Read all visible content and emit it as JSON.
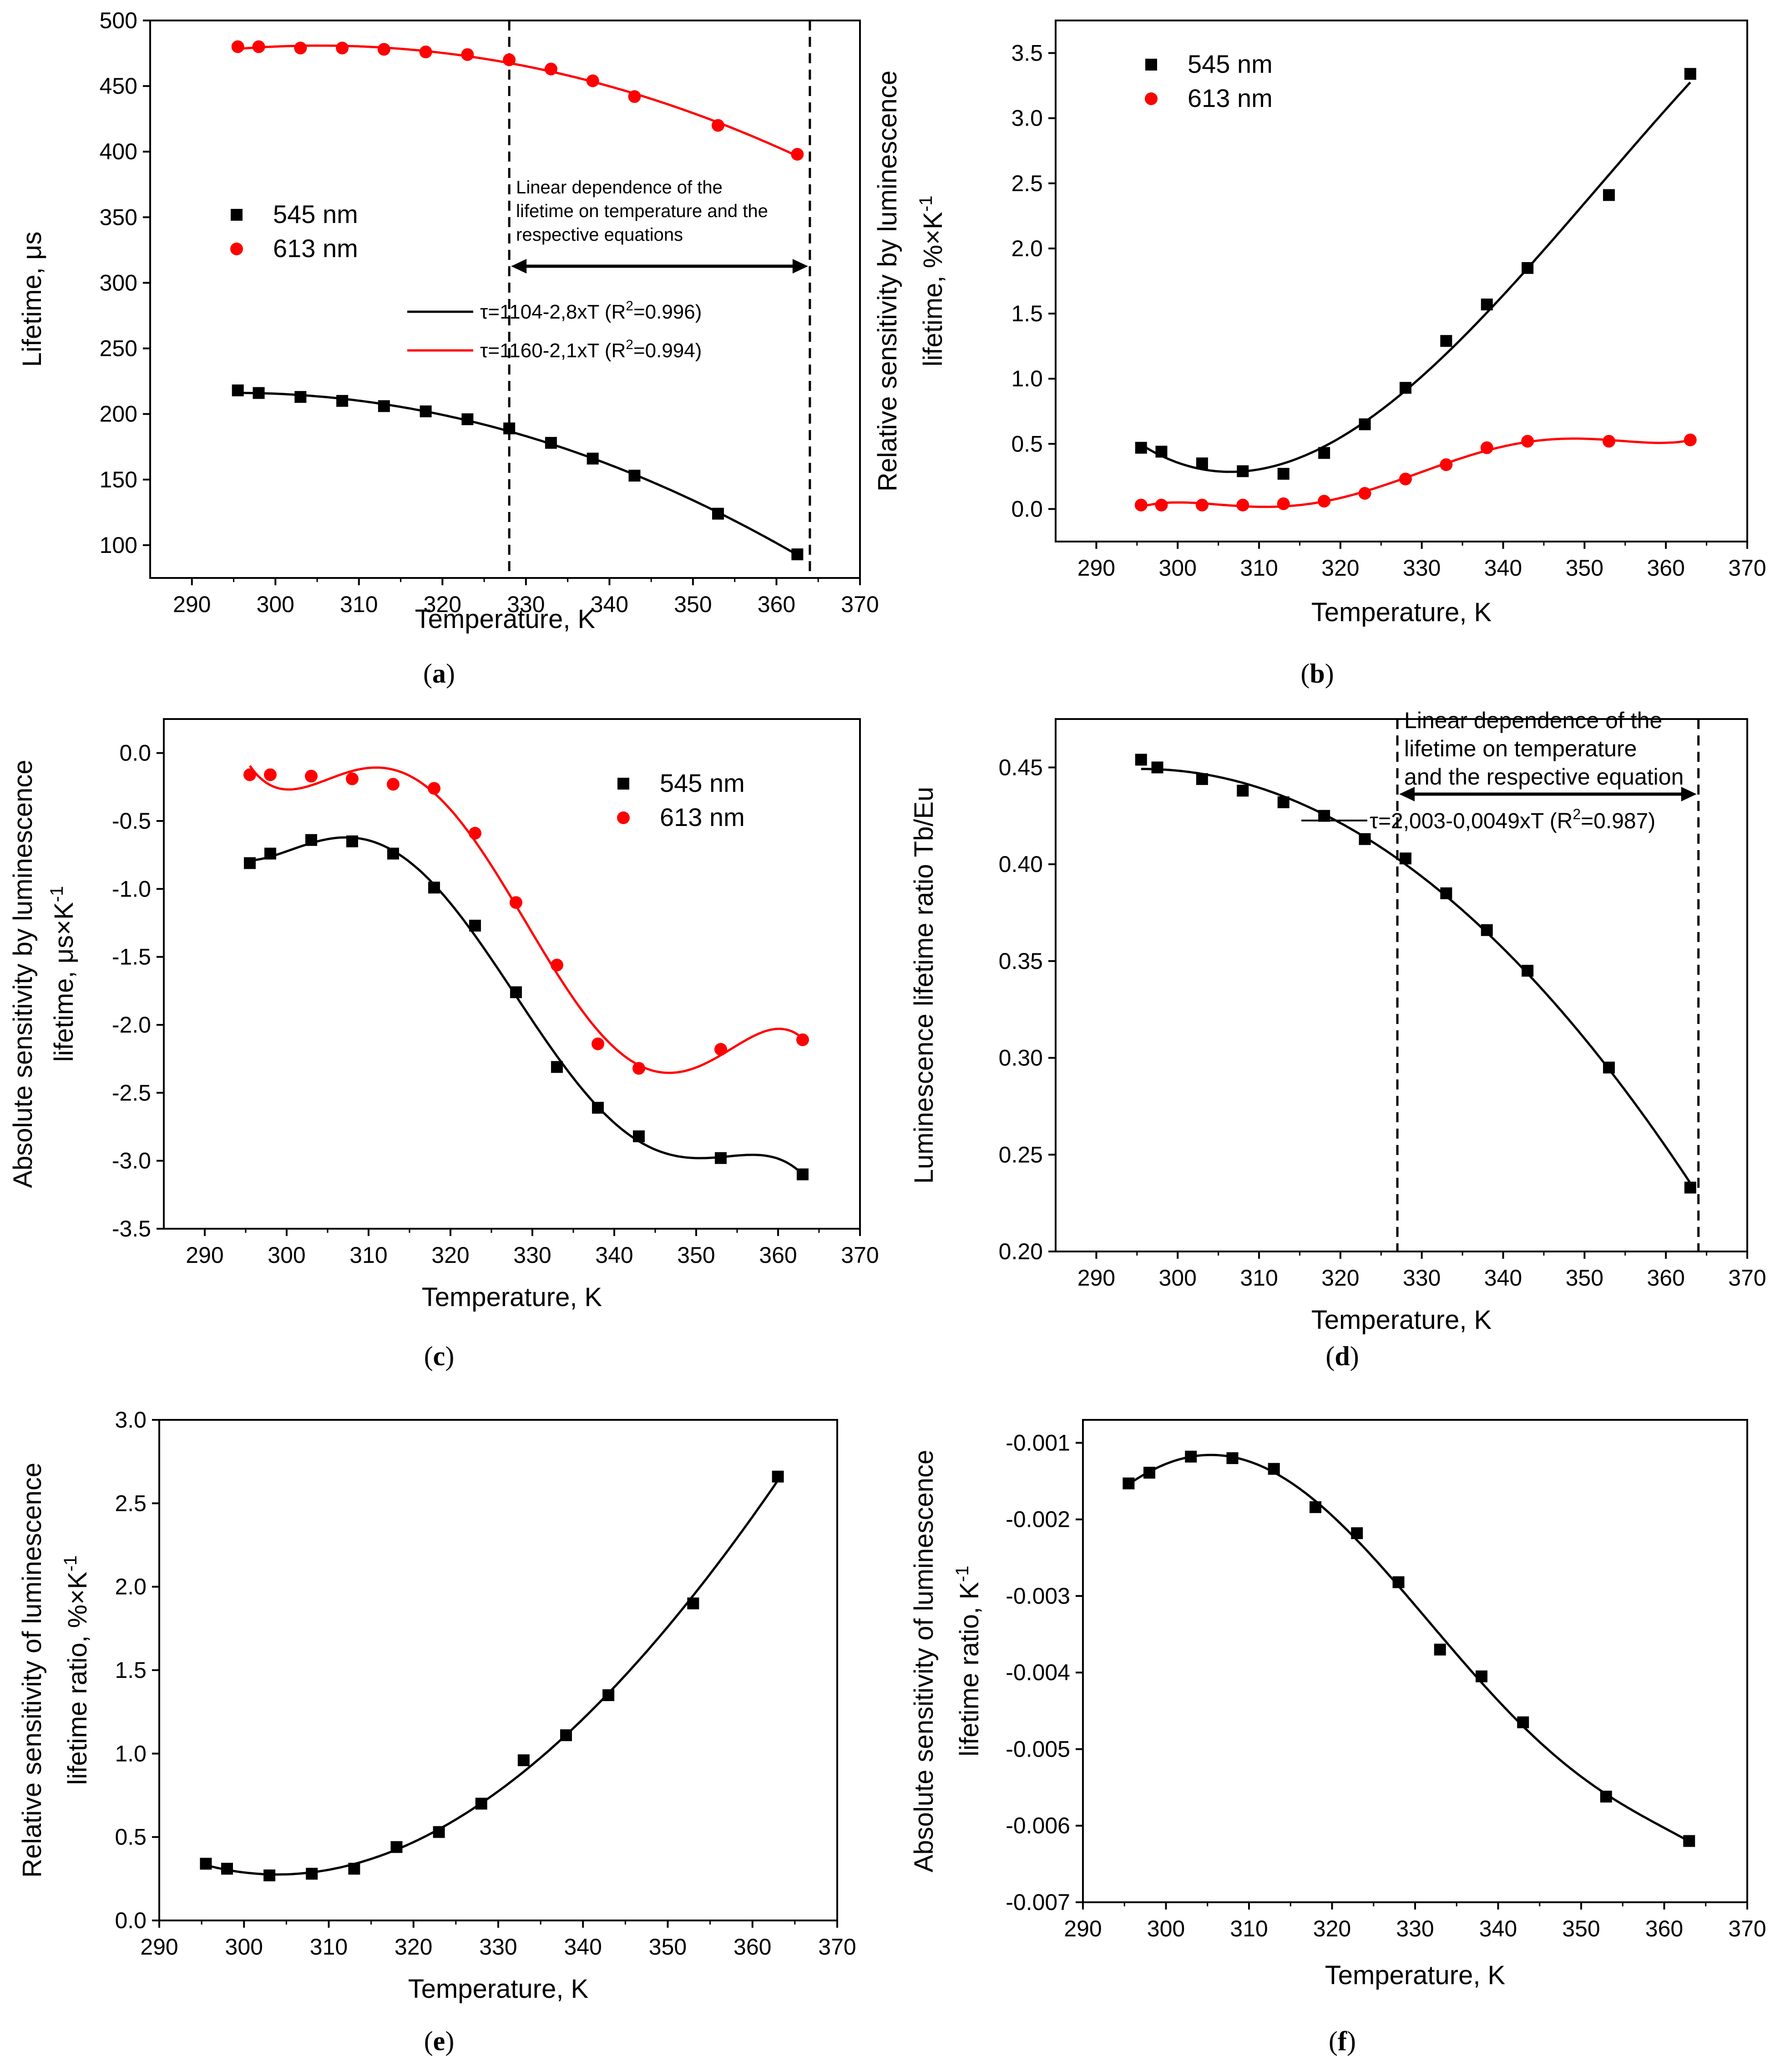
{
  "chart_data": [
    {
      "id": "a",
      "type": "scatter",
      "caption_letter": "a",
      "xlabel": "Temperature, K",
      "ylabel": "Lifetime, μs",
      "xlim": [
        285,
        370
      ],
      "ylim": [
        75,
        500
      ],
      "xticks": [
        290,
        300,
        310,
        320,
        330,
        340,
        350,
        360,
        370
      ],
      "yticks": [
        100,
        150,
        200,
        250,
        300,
        350,
        400,
        450,
        500
      ],
      "legend": {
        "position": "middle-left",
        "entries": [
          "545 nm",
          "613 nm"
        ]
      },
      "series": [
        {
          "name": "545 nm",
          "marker": "square",
          "color": "#000000",
          "x": [
            295.5,
            298,
            303,
            308,
            313,
            318,
            323,
            328,
            333,
            338,
            343,
            353,
            362.5
          ],
          "y": [
            218,
            216,
            213,
            210,
            206,
            202,
            196,
            189,
            178,
            166,
            153,
            124,
            93
          ]
        },
        {
          "name": "613 nm",
          "marker": "circle",
          "color": "#ff0000",
          "x": [
            295.5,
            298,
            303,
            308,
            313,
            318,
            323,
            328,
            333,
            338,
            343,
            353,
            362.5
          ],
          "y": [
            480,
            480,
            479,
            479,
            478,
            476,
            474,
            470,
            463,
            454,
            442,
            420,
            398
          ]
        }
      ],
      "vlines": [
        328,
        364
      ],
      "annotation": {
        "lines": [
          "Linear dependence of the",
          "lifetime on temperature and the",
          "respective equations"
        ]
      },
      "fit_legend": [
        {
          "color": "#000000",
          "prefix": "τ=1104-2,8xT (R",
          "sup": "2",
          "suffix": "=0.996)"
        },
        {
          "color": "#ff0000",
          "prefix": "τ=1160-2,1xT (R",
          "sup": "2",
          "suffix": "=0.994)"
        }
      ]
    },
    {
      "id": "b",
      "type": "scatter",
      "caption_letter": "b",
      "xlabel": "Temperature, K",
      "ylabel_lines": [
        "Relative sensitivity by luminescence",
        "lifetime, %×K"
      ],
      "ylabel_sup": "-1",
      "xlim": [
        285,
        370
      ],
      "ylim": [
        -0.25,
        3.75
      ],
      "xticks": [
        290,
        300,
        310,
        320,
        330,
        340,
        350,
        360,
        370
      ],
      "yticks": [
        0.0,
        0.5,
        1.0,
        1.5,
        2.0,
        2.5,
        3.0,
        3.5
      ],
      "ytick_labels": [
        "0.0",
        "0.5",
        "1.0",
        "1.5",
        "2.0",
        "2.5",
        "3.0",
        "3.5"
      ],
      "legend": {
        "position": "top-left",
        "entries": [
          "545 nm",
          "613 nm"
        ]
      },
      "series": [
        {
          "name": "545 nm",
          "marker": "square",
          "color": "#000000",
          "x": [
            295.5,
            298,
            303,
            308,
            313,
            318,
            323,
            328,
            333,
            338,
            343,
            353,
            363
          ],
          "y": [
            0.47,
            0.44,
            0.35,
            0.29,
            0.27,
            0.43,
            0.65,
            0.93,
            1.29,
            1.57,
            1.85,
            2.41,
            3.34
          ]
        },
        {
          "name": "613 nm",
          "marker": "circle",
          "color": "#ff0000",
          "x": [
            295.5,
            298,
            303,
            308,
            313,
            318,
            323,
            328,
            333,
            338,
            343,
            353,
            363
          ],
          "y": [
            0.03,
            0.03,
            0.03,
            0.03,
            0.04,
            0.06,
            0.12,
            0.23,
            0.34,
            0.47,
            0.52,
            0.52,
            0.53
          ]
        }
      ]
    },
    {
      "id": "c",
      "type": "scatter",
      "caption_letter": "c",
      "xlabel": "Temperature, K",
      "ylabel_lines": [
        "Absolute sensitivity by luminescence",
        "lifetime, μs×K"
      ],
      "ylabel_sup": "-1",
      "xlim": [
        285,
        370
      ],
      "ylim": [
        -3.5,
        0.25
      ],
      "xticks": [
        290,
        300,
        310,
        320,
        330,
        340,
        350,
        360,
        370
      ],
      "yticks": [
        0.0,
        -0.5,
        -1.0,
        -1.5,
        -2.0,
        -2.5,
        -3.0,
        -3.5
      ],
      "ytick_labels": [
        "0.0",
        "-0.5",
        "-1.0",
        "-1.5",
        "-2.0",
        "-2.5",
        "-3.0",
        "-3.5"
      ],
      "legend": {
        "position": "top-right",
        "entries": [
          "545 nm",
          "613 nm"
        ]
      },
      "series": [
        {
          "name": "545 nm",
          "marker": "square",
          "color": "#000000",
          "x": [
            295.5,
            298,
            303,
            308,
            313,
            318,
            323,
            328,
            333,
            338,
            343,
            353,
            363
          ],
          "y": [
            -0.81,
            -0.74,
            -0.64,
            -0.65,
            -0.74,
            -0.99,
            -1.27,
            -1.76,
            -2.31,
            -2.61,
            -2.82,
            -2.98,
            -3.1
          ]
        },
        {
          "name": "613 nm",
          "marker": "circle",
          "color": "#ff0000",
          "x": [
            295.5,
            298,
            303,
            308,
            313,
            318,
            323,
            328,
            333,
            338,
            343,
            353,
            363
          ],
          "y": [
            -0.16,
            -0.16,
            -0.17,
            -0.19,
            -0.23,
            -0.26,
            -0.59,
            -1.1,
            -1.56,
            -2.14,
            -2.32,
            -2.18,
            -2.11
          ]
        }
      ]
    },
    {
      "id": "d",
      "type": "scatter",
      "caption_letter": "d",
      "xlabel": "Temperature, K",
      "ylabel": "Luminescence lifetime ratio Tb/Eu",
      "xlim": [
        285,
        370
      ],
      "ylim": [
        0.2,
        0.475
      ],
      "xticks": [
        290,
        300,
        310,
        320,
        330,
        340,
        350,
        360,
        370
      ],
      "yticks": [
        0.2,
        0.25,
        0.3,
        0.35,
        0.4,
        0.45
      ],
      "ytick_labels": [
        "0.20",
        "0.25",
        "0.30",
        "0.35",
        "0.40",
        "0.45"
      ],
      "series": [
        {
          "name": "Tb/Eu",
          "marker": "square",
          "color": "#000000",
          "x": [
            295.5,
            297.5,
            303,
            308,
            313,
            318,
            323,
            328,
            333,
            338,
            343,
            353,
            363
          ],
          "y": [
            0.454,
            0.45,
            0.444,
            0.438,
            0.432,
            0.425,
            0.413,
            0.403,
            0.385,
            0.366,
            0.345,
            0.295,
            0.233
          ]
        }
      ],
      "vlines": [
        327,
        364
      ],
      "annotation": {
        "lines": [
          "Linear dependence of the",
          "lifetime on temperature",
          "and the respective equation"
        ]
      },
      "fit_label": {
        "prefix": "τ=2,003-0,0049xT (R",
        "sup": "2",
        "suffix": "=0.987)"
      }
    },
    {
      "id": "e",
      "type": "scatter",
      "caption_letter": "e",
      "xlabel": "Temperature, K",
      "ylabel_lines": [
        "Relative sensitivity of luminescence",
        "lifetime ratio, %×K"
      ],
      "ylabel_sup": "-1",
      "xlim": [
        290,
        370
      ],
      "ylim": [
        0.0,
        3.0
      ],
      "xticks": [
        290,
        300,
        310,
        320,
        330,
        340,
        350,
        360,
        370
      ],
      "yticks": [
        0.0,
        0.5,
        1.0,
        1.5,
        2.0,
        2.5,
        3.0
      ],
      "ytick_labels": [
        "0.0",
        "0.5",
        "1.0",
        "1.5",
        "2.0",
        "2.5",
        "3.0"
      ],
      "series": [
        {
          "name": "ratio",
          "marker": "square",
          "color": "#000000",
          "x": [
            295.5,
            298,
            303,
            308,
            313,
            318,
            323,
            328,
            333,
            338,
            343,
            353,
            363
          ],
          "y": [
            0.34,
            0.31,
            0.27,
            0.28,
            0.31,
            0.44,
            0.53,
            0.7,
            0.96,
            1.11,
            1.35,
            1.9,
            2.66
          ]
        }
      ]
    },
    {
      "id": "f",
      "type": "scatter",
      "caption_letter": "f",
      "xlabel": "Temperature, K",
      "ylabel_lines": [
        "Absolute sensitivity of luminescence",
        "lifetime ratio, K"
      ],
      "ylabel_sup": "-1",
      "xlim": [
        290,
        370
      ],
      "ylim": [
        -0.007,
        -0.0007
      ],
      "xticks": [
        290,
        300,
        310,
        320,
        330,
        340,
        350,
        360,
        370
      ],
      "yticks": [
        -0.001,
        -0.002,
        -0.003,
        -0.004,
        -0.005,
        -0.006,
        -0.007
      ],
      "ytick_labels": [
        "-0.001",
        "-0.002",
        "-0.003",
        "-0.004",
        "-0.005",
        "-0.006",
        "-0.007"
      ],
      "series": [
        {
          "name": "ratio",
          "marker": "square",
          "color": "#000000",
          "x": [
            295.5,
            298,
            303,
            308,
            313,
            318,
            323,
            328,
            333,
            338,
            343,
            353,
            363
          ],
          "y": [
            -0.00153,
            -0.00139,
            -0.00118,
            -0.0012,
            -0.00134,
            -0.00184,
            -0.00218,
            -0.00282,
            -0.0037,
            -0.00405,
            -0.00465,
            -0.00562,
            -0.0062
          ]
        }
      ]
    }
  ]
}
